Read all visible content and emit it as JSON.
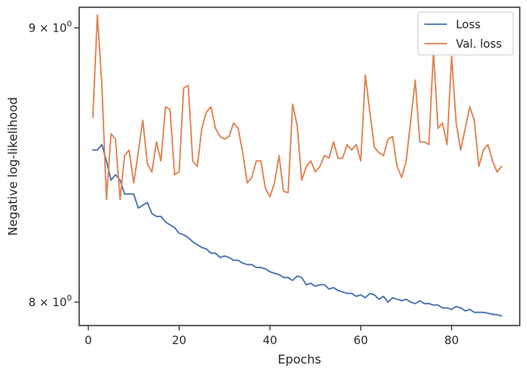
{
  "chart_data": {
    "type": "line",
    "xlabel": "Epochs",
    "ylabel": "Negative log-likelihood",
    "xlim": [
      -2,
      95
    ],
    "ylim": [
      7.92,
      9.08
    ],
    "y_scale": "log",
    "x_ticks": [
      0,
      20,
      40,
      60,
      80
    ],
    "x_tick_labels": [
      "0",
      "20",
      "40",
      "60",
      "80"
    ],
    "y_ticks": [
      8.0,
      9.0
    ],
    "y_tick_labels": [
      {
        "mantissa": "8",
        "times": " × 10",
        "exponent": "0"
      },
      {
        "mantissa": "9",
        "times": " × 10",
        "exponent": "0"
      }
    ],
    "grid": false,
    "legend_position": "upper right",
    "series": [
      {
        "name": "Loss",
        "color": "#4c72b0",
        "x": [
          1,
          2,
          3,
          4,
          5,
          6,
          7,
          8,
          9,
          10,
          11,
          12,
          13,
          14,
          15,
          16,
          17,
          18,
          19,
          20,
          21,
          22,
          23,
          24,
          25,
          26,
          27,
          28,
          29,
          30,
          31,
          32,
          33,
          34,
          35,
          36,
          37,
          38,
          39,
          40,
          41,
          42,
          43,
          44,
          45,
          46,
          47,
          48,
          49,
          50,
          51,
          52,
          53,
          54,
          55,
          56,
          57,
          58,
          59,
          60,
          61,
          62,
          63,
          64,
          65,
          66,
          67,
          68,
          69,
          70,
          71,
          72,
          73,
          74,
          75,
          76,
          77,
          78,
          79,
          80,
          81,
          82,
          83,
          84,
          85,
          86,
          87,
          88,
          89,
          90,
          91
        ],
        "y": [
          8.54,
          8.54,
          8.56,
          8.5,
          8.43,
          8.45,
          8.43,
          8.38,
          8.38,
          8.38,
          8.33,
          8.34,
          8.35,
          8.31,
          8.3,
          8.3,
          8.28,
          8.27,
          8.26,
          8.24,
          8.235,
          8.225,
          8.21,
          8.2,
          8.19,
          8.185,
          8.17,
          8.17,
          8.155,
          8.16,
          8.155,
          8.145,
          8.145,
          8.135,
          8.13,
          8.13,
          8.12,
          8.12,
          8.115,
          8.105,
          8.1,
          8.095,
          8.085,
          8.085,
          8.075,
          8.09,
          8.085,
          8.06,
          8.065,
          8.055,
          8.06,
          8.06,
          8.045,
          8.05,
          8.04,
          8.035,
          8.03,
          8.03,
          8.02,
          8.025,
          8.015,
          8.03,
          8.025,
          8.01,
          8.02,
          8.0,
          8.015,
          8.01,
          8.005,
          8.01,
          8.0,
          7.995,
          8.005,
          7.995,
          7.995,
          7.99,
          7.99,
          7.98,
          7.98,
          7.975,
          7.985,
          7.98,
          7.97,
          7.975,
          7.965,
          7.965,
          7.965,
          7.962,
          7.958,
          7.957,
          7.953
        ]
      },
      {
        "name": "Val. loss",
        "color": "#dd8452",
        "x": [
          1,
          2,
          3,
          4,
          5,
          6,
          7,
          8,
          9,
          10,
          11,
          12,
          13,
          14,
          15,
          16,
          17,
          18,
          19,
          20,
          21,
          22,
          23,
          24,
          25,
          26,
          27,
          28,
          29,
          30,
          31,
          32,
          33,
          34,
          35,
          36,
          37,
          38,
          39,
          40,
          41,
          42,
          43,
          44,
          45,
          46,
          47,
          48,
          49,
          50,
          51,
          52,
          53,
          54,
          55,
          56,
          57,
          58,
          59,
          60,
          61,
          62,
          63,
          64,
          65,
          66,
          67,
          68,
          69,
          70,
          71,
          72,
          73,
          74,
          75,
          76,
          77,
          78,
          79,
          80,
          81,
          82,
          83,
          84,
          85,
          86,
          87,
          88,
          89,
          90,
          91
        ],
        "y": [
          8.66,
          9.05,
          8.78,
          8.36,
          8.6,
          8.58,
          8.36,
          8.52,
          8.54,
          8.42,
          8.53,
          8.65,
          8.49,
          8.46,
          8.57,
          8.5,
          8.7,
          8.69,
          8.45,
          8.46,
          8.77,
          8.78,
          8.5,
          8.48,
          8.62,
          8.68,
          8.7,
          8.62,
          8.59,
          8.58,
          8.59,
          8.64,
          8.62,
          8.53,
          8.42,
          8.44,
          8.5,
          8.5,
          8.4,
          8.37,
          8.42,
          8.52,
          8.39,
          8.385,
          8.71,
          8.63,
          8.43,
          8.48,
          8.5,
          8.46,
          8.48,
          8.52,
          8.51,
          8.57,
          8.51,
          8.51,
          8.56,
          8.54,
          8.56,
          8.5,
          8.82,
          8.68,
          8.55,
          8.53,
          8.52,
          8.58,
          8.59,
          8.48,
          8.44,
          8.5,
          8.65,
          8.8,
          8.57,
          8.57,
          8.56,
          8.91,
          8.62,
          8.64,
          8.56,
          8.89,
          8.64,
          8.54,
          8.62,
          8.7,
          8.65,
          8.48,
          8.54,
          8.56,
          8.5,
          8.46,
          8.48
        ]
      }
    ]
  }
}
